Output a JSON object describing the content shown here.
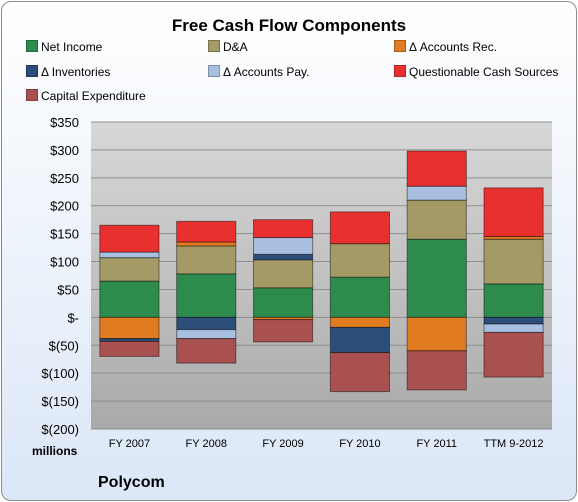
{
  "chart_data": {
    "type": "bar",
    "stacked": true,
    "title": "Free Cash Flow Components",
    "units_label": "millions",
    "company": "Polycom",
    "categories": [
      "FY 2007",
      "FY 2008",
      "FY 2009",
      "FY 2010",
      "FY 2011",
      "TTM 9-2012"
    ],
    "y_ticks": [
      "$350",
      "$300",
      "$250",
      "$200",
      "$150",
      "$100",
      "$50",
      "$-",
      "$(50)",
      "$(100)",
      "$(150)",
      "$(200)"
    ],
    "ylim": [
      -200,
      350
    ],
    "grid": true,
    "legend_position": "top",
    "series": [
      {
        "name": "Net Income",
        "color": "#2e8b4e",
        "values": [
          65,
          78,
          53,
          72,
          140,
          60
        ]
      },
      {
        "name": "D&A",
        "color": "#a39a66",
        "values": [
          42,
          50,
          50,
          60,
          70,
          80
        ]
      },
      {
        "name": "Δ Accounts Rec.",
        "color": "#e07b22",
        "values": [
          -38,
          7,
          -4,
          -18,
          -60,
          5
        ]
      },
      {
        "name": "Δ Inventories",
        "color": "#2b4e78",
        "values": [
          -5,
          -22,
          10,
          -45,
          0,
          -12
        ]
      },
      {
        "name": "Δ Accounts Pay.",
        "color": "#a8bfe0",
        "values": [
          10,
          -16,
          30,
          0,
          25,
          -15
        ]
      },
      {
        "name": "Questionable Cash Sources",
        "color": "#e8302f",
        "values": [
          48,
          37,
          32,
          57,
          63,
          87
        ]
      },
      {
        "name": "Capital Expenditure",
        "color": "#a95050",
        "values": [
          -27,
          -44,
          -40,
          -70,
          -70,
          -80
        ]
      }
    ]
  }
}
